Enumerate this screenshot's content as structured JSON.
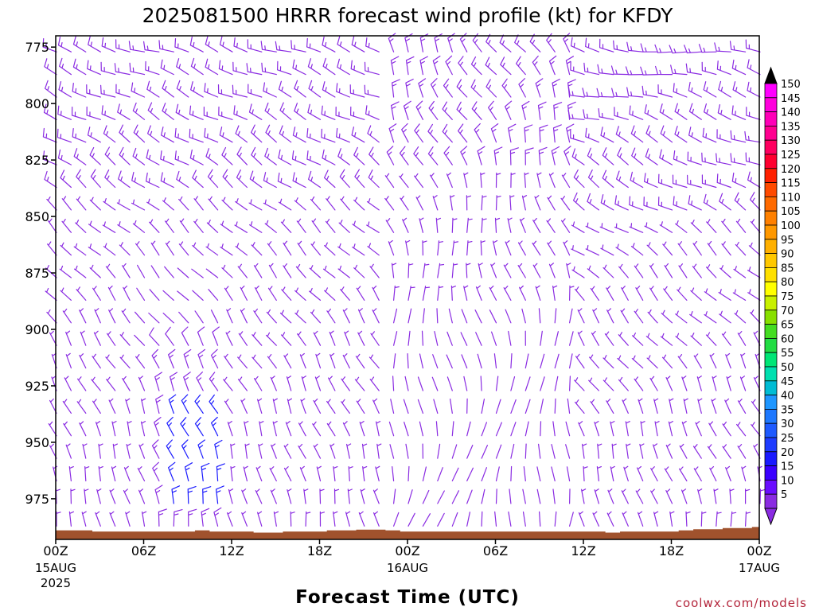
{
  "chart_data": {
    "type": "wind-barb-profile",
    "title": "2025081500 HRRR forecast wind profile (kt) for KFDY",
    "xlabel": "Forecast Time (UTC)",
    "ylabel": "",
    "y_ticks": [
      "775",
      "800",
      "825",
      "850",
      "875",
      "900",
      "925",
      "950",
      "975"
    ],
    "y_tick_values": [
      775,
      800,
      825,
      850,
      875,
      900,
      925,
      950,
      975
    ],
    "ylim": [
      770,
      993
    ],
    "y_inverted": true,
    "x_ticks": [
      {
        "hour": 0,
        "label": "00Z",
        "sub1": "15AUG",
        "sub2": "2025"
      },
      {
        "hour": 6,
        "label": "06Z",
        "sub1": "",
        "sub2": ""
      },
      {
        "hour": 12,
        "label": "12Z",
        "sub1": "",
        "sub2": ""
      },
      {
        "hour": 18,
        "label": "18Z",
        "sub1": "",
        "sub2": ""
      },
      {
        "hour": 24,
        "label": "00Z",
        "sub1": "16AUG",
        "sub2": ""
      },
      {
        "hour": 30,
        "label": "06Z",
        "sub1": "",
        "sub2": ""
      },
      {
        "hour": 36,
        "label": "12Z",
        "sub1": "",
        "sub2": ""
      },
      {
        "hour": 42,
        "label": "18Z",
        "sub1": "",
        "sub2": ""
      },
      {
        "hour": 48,
        "label": "00Z",
        "sub1": "17AUG",
        "sub2": ""
      }
    ],
    "xlim": [
      0,
      48
    ],
    "hours": [
      0,
      1,
      2,
      3,
      4,
      5,
      6,
      7,
      8,
      9,
      10,
      11,
      12,
      13,
      14,
      15,
      16,
      17,
      18,
      19,
      20,
      21,
      22,
      23,
      24,
      25,
      26,
      27,
      28,
      29,
      30,
      31,
      32,
      33,
      34,
      35,
      36,
      37,
      38,
      39,
      40,
      41,
      42,
      43,
      44,
      45,
      46,
      47,
      48
    ],
    "levels": [
      775,
      785,
      795,
      805,
      815,
      825,
      835,
      845,
      855,
      865,
      875,
      885,
      895,
      905,
      915,
      925,
      935,
      945,
      955,
      965,
      975,
      985
    ],
    "surface_pressure": [
      989,
      989,
      989,
      989.5,
      989.5,
      989.5,
      989.5,
      989.5,
      989.5,
      989.5,
      989,
      989.5,
      989.5,
      989.5,
      990,
      990,
      989.5,
      989.5,
      989.5,
      989,
      989,
      988.7,
      988.7,
      989,
      989.5,
      989.5,
      989.5,
      989.5,
      989.5,
      989.5,
      989.5,
      989.5,
      989.5,
      989.5,
      989.5,
      989.5,
      989.5,
      989.5,
      990,
      989.5,
      989.5,
      989.5,
      989.5,
      989,
      988.5,
      988.5,
      988,
      988,
      987.5
    ],
    "surface_color": "#a0522d",
    "colorbar": {
      "ticks": [
        "5",
        "10",
        "15",
        "20",
        "25",
        "30",
        "35",
        "40",
        "45",
        "50",
        "55",
        "60",
        "65",
        "70",
        "75",
        "80",
        "85",
        "90",
        "95",
        "100",
        "105",
        "110",
        "115",
        "120",
        "125",
        "130",
        "135",
        "140",
        "145",
        "150"
      ],
      "colors": [
        "#8a2be2",
        "#6a0dff",
        "#3a00ff",
        "#1a1aff",
        "#1e3cff",
        "#1e5aff",
        "#1e78ff",
        "#1e96ff",
        "#00bcd4",
        "#00e0b0",
        "#00e676",
        "#22dd44",
        "#44dd22",
        "#88e000",
        "#c8f000",
        "#ffff00",
        "#ffe000",
        "#ffc800",
        "#ffb000",
        "#ff9800",
        "#ff8000",
        "#ff6a00",
        "#ff4a00",
        "#ff2000",
        "#ff0030",
        "#ff0060",
        "#ff0090",
        "#ff00b8",
        "#ff00dd",
        "#ff00ff"
      ],
      "min_cap_color": "#8a2be2",
      "max_cap_color": "#000000"
    },
    "barb_color_light": "#8a2be2",
    "barb_color_strong": "#1a1aff"
  },
  "credit": "coolwx.com/models"
}
